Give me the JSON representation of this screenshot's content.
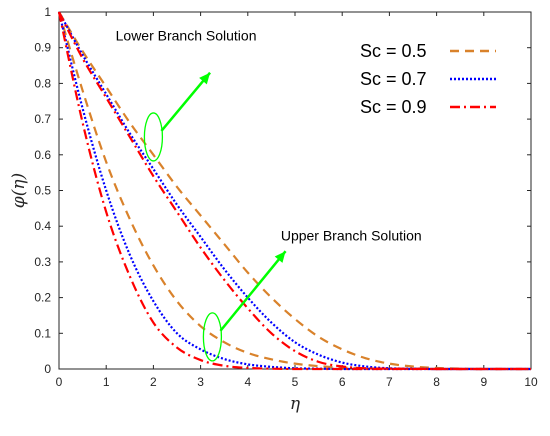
{
  "chart_data": {
    "type": "line",
    "xlabel": "η",
    "ylabel": "φ(η)",
    "xlim": [
      0,
      10
    ],
    "ylim": [
      0,
      1
    ],
    "xticks": [
      "0",
      "1",
      "2",
      "3",
      "4",
      "5",
      "6",
      "7",
      "8",
      "9",
      "10"
    ],
    "yticks": [
      "0",
      "0.1",
      "0.2",
      "0.3",
      "0.4",
      "0.5",
      "0.6",
      "0.7",
      "0.8",
      "0.9",
      "1"
    ],
    "grid": false,
    "legend_position": "top-right",
    "legend": [
      {
        "label": "Sc = 0.5",
        "color": "#D9822B",
        "dash": "dashed"
      },
      {
        "label": "Sc = 0.7",
        "color": "#0000FF",
        "dash": "dotted"
      },
      {
        "label": "Sc = 0.9",
        "color": "#FF0000",
        "dash": "dash-dot"
      }
    ],
    "series": [
      {
        "name": "Sc = 0.5",
        "branch": "Lower Branch Solution",
        "color": "#D9822B",
        "dash": "dashed",
        "x": [
          0,
          0.5,
          1,
          1.5,
          2,
          2.5,
          3,
          3.5,
          4,
          4.5,
          5,
          5.5,
          6,
          6.5,
          7,
          7.5,
          8,
          8.5,
          9,
          10
        ],
        "y": [
          1,
          0.89,
          0.79,
          0.69,
          0.6,
          0.51,
          0.43,
          0.35,
          0.27,
          0.2,
          0.14,
          0.09,
          0.055,
          0.03,
          0.015,
          0.007,
          0.003,
          0.001,
          0,
          0
        ]
      },
      {
        "name": "Sc = 0.5",
        "branch": "Upper Branch Solution",
        "color": "#D9822B",
        "dash": "dashed",
        "x": [
          0,
          0.5,
          1,
          1.5,
          2,
          2.5,
          3,
          3.5,
          4,
          4.5,
          5,
          5.5,
          6,
          6.5,
          7,
          8,
          9,
          10
        ],
        "y": [
          1,
          0.78,
          0.58,
          0.42,
          0.29,
          0.19,
          0.12,
          0.075,
          0.045,
          0.027,
          0.015,
          0.008,
          0.004,
          0.002,
          0.001,
          0,
          0,
          0
        ]
      },
      {
        "name": "Sc = 0.7",
        "branch": "Lower Branch Solution",
        "color": "#0000FF",
        "dash": "dotted",
        "x": [
          0,
          0.5,
          1,
          1.5,
          2,
          2.5,
          3,
          3.5,
          4,
          4.5,
          5,
          5.5,
          6,
          6.5,
          7,
          7.5,
          8,
          9,
          10
        ],
        "y": [
          1,
          0.88,
          0.77,
          0.66,
          0.56,
          0.46,
          0.37,
          0.28,
          0.2,
          0.13,
          0.075,
          0.04,
          0.018,
          0.007,
          0.002,
          0.001,
          0,
          0,
          0
        ]
      },
      {
        "name": "Sc = 0.7",
        "branch": "Upper Branch Solution",
        "color": "#0000FF",
        "dash": "dotted",
        "x": [
          0,
          0.5,
          1,
          1.5,
          2,
          2.5,
          3,
          3.5,
          4,
          4.5,
          5,
          5.5,
          6,
          7,
          8,
          9,
          10
        ],
        "y": [
          1,
          0.73,
          0.5,
          0.32,
          0.19,
          0.1,
          0.055,
          0.028,
          0.013,
          0.006,
          0.002,
          0.001,
          0,
          0,
          0,
          0,
          0
        ]
      },
      {
        "name": "Sc = 0.9",
        "branch": "Lower Branch Solution",
        "color": "#FF0000",
        "dash": "dash-dot",
        "x": [
          0,
          0.5,
          1,
          1.5,
          2,
          2.5,
          3,
          3.5,
          4,
          4.5,
          5,
          5.5,
          6,
          6.5,
          7,
          8,
          9,
          10
        ],
        "y": [
          1,
          0.87,
          0.76,
          0.65,
          0.54,
          0.44,
          0.34,
          0.25,
          0.17,
          0.1,
          0.05,
          0.02,
          0.007,
          0.002,
          0.001,
          0,
          0,
          0
        ]
      },
      {
        "name": "Sc = 0.9",
        "branch": "Upper Branch Solution",
        "color": "#FF0000",
        "dash": "dash-dot",
        "x": [
          0,
          0.5,
          1,
          1.5,
          2,
          2.5,
          3,
          3.5,
          4,
          4.5,
          5,
          6,
          7,
          8,
          9,
          10
        ],
        "y": [
          1,
          0.69,
          0.44,
          0.26,
          0.13,
          0.06,
          0.025,
          0.009,
          0.003,
          0.001,
          0,
          0,
          0,
          0,
          0,
          0
        ]
      }
    ],
    "annotations": [
      {
        "text": "Lower Branch Solution",
        "anchor": [
          2,
          0.65
        ],
        "arrow_to": [
          3.2,
          0.83
        ],
        "label_at": [
          1.2,
          0.92
        ],
        "marker": "ellipse",
        "color": "#00FF00"
      },
      {
        "text": "Upper Branch Solution",
        "anchor": [
          3.25,
          0.09
        ],
        "arrow_to": [
          4.8,
          0.33
        ],
        "label_at": [
          4.7,
          0.36
        ],
        "marker": "ellipse",
        "color": "#00FF00"
      }
    ]
  }
}
